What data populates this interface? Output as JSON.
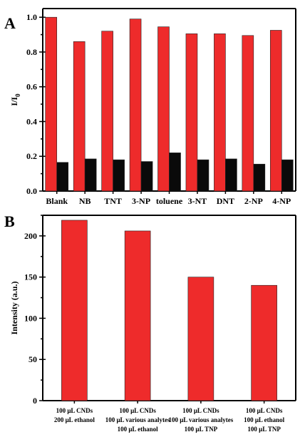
{
  "chart_data": [
    {
      "panel": "A",
      "type": "bar",
      "ylabel_main": "I/I",
      "ylabel_sub": "0",
      "ylim": [
        0.0,
        1.05
      ],
      "yticks": [
        "0.0",
        "0.2",
        "0.4",
        "0.6",
        "0.8",
        "1.0"
      ],
      "categories": [
        "Blank",
        "NB",
        "TNT",
        "3-NP",
        "toluene",
        "3-NT",
        "DNT",
        "2-NP",
        "4-NP"
      ],
      "series": [
        {
          "color": "#ee2b2b",
          "values": [
            1.0,
            0.86,
            0.92,
            0.99,
            0.945,
            0.905,
            0.905,
            0.895,
            0.925
          ]
        },
        {
          "color": "#0a0a0a",
          "values": [
            0.165,
            0.185,
            0.18,
            0.17,
            0.22,
            0.18,
            0.185,
            0.155,
            0.18
          ]
        }
      ]
    },
    {
      "panel": "B",
      "type": "bar",
      "ylabel": "Intensity (a.u.)",
      "ylim": [
        0,
        225
      ],
      "yticks": [
        "0",
        "50",
        "100",
        "150",
        "200"
      ],
      "categories": [
        [
          "100 μL CNDs",
          "200 μL ethanol"
        ],
        [
          "100 μL CNDs",
          "100 μL various analytes",
          "100 μL ethanol"
        ],
        [
          "100 μL CNDs",
          "100 μL various analytes",
          "100 μL TNP"
        ],
        [
          "100 μL CNDs",
          "100 μL ethanol",
          "100 μL TNP"
        ]
      ],
      "series": [
        {
          "color": "#ee2b2b",
          "values": [
            219,
            206,
            150,
            140
          ]
        }
      ]
    }
  ]
}
